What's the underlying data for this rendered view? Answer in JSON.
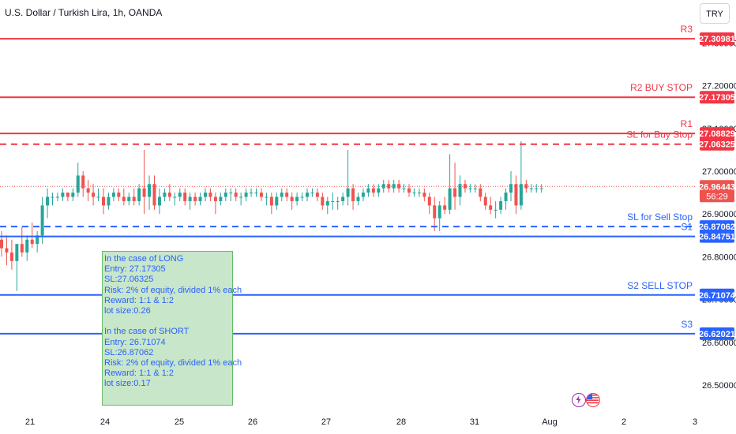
{
  "header": {
    "title": "U.S. Dollar / Turkish Lira, 1h, OANDA",
    "currency_button": "TRY"
  },
  "note": {
    "lines": [
      "In the case of LONG",
      "Entry: 27.17305",
      "SL:27.06325",
      "Risk: 2% of equity, divided 1% each",
      "Reward: 1:1 & 1:2",
      "lot size:0.26",
      "",
      "In the case of SHORT",
      "Entry: 26.71074",
      "SL:26.87062",
      "Risk: 2% of equity, divided 1% each",
      "Reward: 1:1 & 1:2",
      "lot size:0.17"
    ]
  },
  "colors": {
    "up": "#26a69a",
    "down": "#ef5350",
    "resistance": "#f23645",
    "support": "#2962ff",
    "note_bg": "#c8e6c9"
  },
  "icons": [
    "lightning-icon",
    "us-flag-icon"
  ],
  "chart_data": {
    "type": "candlestick",
    "title": "U.S. Dollar / Turkish Lira, 1h, OANDA",
    "ylim": [
      26.45,
      27.36
    ],
    "y_ticks": [
      26.5,
      26.6,
      26.7,
      26.8,
      26.9,
      27.0,
      27.1,
      27.2,
      27.3
    ],
    "y_tick_labels": [
      "26.50000",
      "26.60000",
      "26.70000",
      "26.80000",
      "26.90000",
      "27.00000",
      "27.10000",
      "27.20000",
      "27.30000"
    ],
    "x_ticks": [
      "21",
      "24",
      "25",
      "26",
      "27",
      "28",
      "31",
      "Aug",
      "2",
      "3"
    ],
    "x_tick_dates": [
      "2023-07-21",
      "2023-07-24",
      "2023-07-25",
      "2023-07-26",
      "2023-07-27",
      "2023-07-28",
      "2023-07-31",
      "2023-08-01",
      "2023-08-02",
      "2023-08-03"
    ],
    "last_price": {
      "value": 26.96443,
      "label": "26.96443",
      "countdown": "56:29"
    },
    "levels": [
      {
        "label": "R3",
        "value": 27.30981,
        "price_label": "27.30981",
        "style": "solid",
        "color": "#f23645"
      },
      {
        "label": "R2 BUY STOP",
        "value": 27.17305,
        "price_label": "27.17305",
        "style": "solid",
        "color": "#f23645"
      },
      {
        "label": "R1",
        "value": 27.08829,
        "price_label": "27.08829",
        "style": "solid",
        "color": "#f23645"
      },
      {
        "label": "SL for Buy Stop",
        "value": 27.06325,
        "price_label": "27.06325",
        "style": "dashed",
        "color": "#f23645"
      },
      {
        "label": "SL for Sell Stop",
        "value": 26.87062,
        "price_label": "26.87062",
        "style": "dashed",
        "color": "#2962ff"
      },
      {
        "label": "S1",
        "value": 26.84751,
        "price_label": "26.84751",
        "style": "solid",
        "color": "#2962ff"
      },
      {
        "label": "S2 SELL STOP",
        "value": 26.71074,
        "price_label": "26.71074",
        "style": "solid",
        "color": "#2962ff"
      },
      {
        "label": "S3",
        "value": 26.62021,
        "price_label": "26.62021",
        "style": "solid",
        "color": "#2962ff"
      }
    ],
    "candles": [
      [
        0,
        26.84,
        26.86,
        26.8,
        26.82
      ],
      [
        1,
        26.82,
        26.85,
        26.78,
        26.81
      ],
      [
        2,
        26.81,
        26.84,
        26.77,
        26.79
      ],
      [
        3,
        26.79,
        26.83,
        26.72,
        26.83
      ],
      [
        4,
        26.83,
        26.87,
        26.8,
        26.81
      ],
      [
        5,
        26.81,
        26.85,
        26.79,
        26.84
      ],
      [
        6,
        26.84,
        26.88,
        26.82,
        26.83
      ],
      [
        7,
        26.83,
        26.86,
        26.81,
        26.85
      ],
      [
        8,
        26.85,
        26.94,
        26.83,
        26.92
      ],
      [
        9,
        26.92,
        26.96,
        26.89,
        26.94
      ],
      [
        10,
        26.94,
        26.95,
        26.92,
        26.94
      ],
      [
        11,
        26.94,
        26.95,
        26.93,
        26.94
      ],
      [
        12,
        26.94,
        26.96,
        26.93,
        26.95
      ],
      [
        13,
        26.95,
        26.95,
        26.93,
        26.94
      ],
      [
        14,
        26.94,
        26.96,
        26.93,
        26.95
      ],
      [
        15,
        26.95,
        27.02,
        26.94,
        26.99
      ],
      [
        16,
        26.99,
        27.0,
        26.94,
        26.96
      ],
      [
        17,
        26.96,
        26.98,
        26.93,
        26.95
      ],
      [
        18,
        26.95,
        26.97,
        26.92,
        26.94
      ],
      [
        19,
        26.94,
        26.96,
        26.93,
        26.94
      ],
      [
        20,
        26.94,
        26.96,
        26.9,
        26.92
      ],
      [
        21,
        26.92,
        26.95,
        26.91,
        26.94
      ],
      [
        22,
        26.94,
        26.96,
        26.93,
        26.95
      ],
      [
        23,
        26.95,
        26.96,
        26.93,
        26.94
      ],
      [
        24,
        26.94,
        26.96,
        26.92,
        26.93
      ],
      [
        25,
        26.93,
        26.95,
        26.92,
        26.94
      ],
      [
        26,
        26.94,
        26.96,
        26.92,
        26.93
      ],
      [
        27,
        26.93,
        26.97,
        26.92,
        26.96
      ],
      [
        28,
        26.96,
        27.05,
        26.9,
        26.94
      ],
      [
        29,
        26.94,
        26.99,
        26.91,
        26.97
      ],
      [
        30,
        26.97,
        26.99,
        26.91,
        26.92
      ],
      [
        31,
        26.92,
        26.96,
        26.9,
        26.94
      ],
      [
        32,
        26.94,
        26.96,
        26.93,
        26.95
      ],
      [
        33,
        26.95,
        26.97,
        26.93,
        26.94
      ],
      [
        34,
        26.94,
        26.95,
        26.92,
        26.94
      ],
      [
        35,
        26.94,
        26.96,
        26.93,
        26.95
      ],
      [
        36,
        26.95,
        26.96,
        26.92,
        26.93
      ],
      [
        37,
        26.93,
        26.95,
        26.91,
        26.94
      ],
      [
        38,
        26.94,
        26.95,
        26.92,
        26.93
      ],
      [
        39,
        26.93,
        26.95,
        26.92,
        26.94
      ],
      [
        40,
        26.94,
        26.96,
        26.93,
        26.95
      ],
      [
        41,
        26.95,
        26.96,
        26.93,
        26.94
      ],
      [
        42,
        26.94,
        26.95,
        26.9,
        26.93
      ],
      [
        43,
        26.93,
        26.95,
        26.92,
        26.94
      ],
      [
        44,
        26.94,
        26.96,
        26.93,
        26.95
      ],
      [
        45,
        26.95,
        26.96,
        26.93,
        26.95
      ],
      [
        46,
        26.95,
        26.96,
        26.93,
        26.94
      ],
      [
        47,
        26.94,
        26.95,
        26.92,
        26.94
      ],
      [
        48,
        26.94,
        26.96,
        26.93,
        26.95
      ],
      [
        49,
        26.95,
        26.96,
        26.94,
        26.95
      ],
      [
        50,
        26.95,
        26.96,
        26.94,
        26.95
      ],
      [
        51,
        26.95,
        26.96,
        26.93,
        26.94
      ],
      [
        52,
        26.94,
        26.95,
        26.92,
        26.94
      ],
      [
        53,
        26.94,
        26.95,
        26.9,
        26.92
      ],
      [
        54,
        26.92,
        26.95,
        26.91,
        26.94
      ],
      [
        55,
        26.94,
        26.96,
        26.93,
        26.95
      ],
      [
        56,
        26.95,
        26.96,
        26.93,
        26.94
      ],
      [
        57,
        26.94,
        26.95,
        26.91,
        26.93
      ],
      [
        58,
        26.93,
        26.95,
        26.92,
        26.94
      ],
      [
        59,
        26.94,
        26.95,
        26.93,
        26.94
      ],
      [
        60,
        26.94,
        26.96,
        26.93,
        26.95
      ],
      [
        61,
        26.95,
        26.96,
        26.94,
        26.95
      ],
      [
        62,
        26.95,
        26.96,
        26.93,
        26.94
      ],
      [
        63,
        26.94,
        26.95,
        26.91,
        26.92
      ],
      [
        64,
        26.92,
        26.94,
        26.9,
        26.93
      ],
      [
        65,
        26.93,
        26.95,
        26.91,
        26.93
      ],
      [
        66,
        26.93,
        26.94,
        26.91,
        26.93
      ],
      [
        67,
        26.93,
        26.95,
        26.92,
        26.94
      ],
      [
        68,
        26.94,
        27.05,
        26.92,
        26.96
      ],
      [
        69,
        26.96,
        26.97,
        26.91,
        26.93
      ],
      [
        70,
        26.93,
        26.95,
        26.92,
        26.94
      ],
      [
        71,
        26.94,
        26.96,
        26.93,
        26.95
      ],
      [
        72,
        26.95,
        26.97,
        26.94,
        26.96
      ],
      [
        73,
        26.96,
        26.97,
        26.94,
        26.95
      ],
      [
        74,
        26.95,
        26.97,
        26.94,
        26.96
      ],
      [
        75,
        26.96,
        26.98,
        26.95,
        26.97
      ],
      [
        76,
        26.97,
        26.98,
        26.95,
        26.96
      ],
      [
        77,
        26.96,
        26.98,
        26.95,
        26.97
      ],
      [
        78,
        26.97,
        26.98,
        26.95,
        26.96
      ],
      [
        79,
        26.96,
        26.97,
        26.95,
        26.96
      ],
      [
        80,
        26.96,
        26.97,
        26.94,
        26.95
      ],
      [
        81,
        26.95,
        26.96,
        26.94,
        26.95
      ],
      [
        82,
        26.95,
        26.96,
        26.94,
        26.95
      ],
      [
        83,
        26.95,
        26.96,
        26.93,
        26.94
      ],
      [
        84,
        26.94,
        26.95,
        26.9,
        26.92
      ],
      [
        85,
        26.92,
        26.94,
        26.86,
        26.89
      ],
      [
        86,
        26.89,
        26.93,
        26.86,
        26.92
      ],
      [
        87,
        26.92,
        26.94,
        26.9,
        26.91
      ],
      [
        88,
        26.91,
        27.04,
        26.9,
        26.96
      ],
      [
        89,
        26.96,
        27.02,
        26.91,
        26.94
      ],
      [
        90,
        26.94,
        26.99,
        26.92,
        26.97
      ],
      [
        91,
        26.97,
        26.98,
        26.95,
        26.96
      ],
      [
        92,
        26.96,
        26.97,
        26.95,
        26.96
      ],
      [
        93,
        26.96,
        26.97,
        26.95,
        26.96
      ],
      [
        94,
        26.96,
        26.97,
        26.93,
        26.94
      ],
      [
        95,
        26.94,
        26.95,
        26.91,
        26.92
      ],
      [
        96,
        26.92,
        26.94,
        26.9,
        26.91
      ],
      [
        97,
        26.91,
        26.93,
        26.89,
        26.91
      ],
      [
        98,
        26.91,
        26.94,
        26.9,
        26.93
      ],
      [
        99,
        26.93,
        26.96,
        26.91,
        26.95
      ],
      [
        100,
        26.95,
        27.0,
        26.93,
        26.97
      ],
      [
        101,
        26.97,
        26.99,
        26.9,
        26.92
      ],
      [
        102,
        26.92,
        27.07,
        26.91,
        26.97
      ],
      [
        103,
        26.97,
        26.98,
        26.95,
        26.96
      ],
      [
        104,
        26.96,
        26.97,
        26.95,
        26.96
      ],
      [
        105,
        26.96,
        26.97,
        26.95,
        26.96
      ],
      [
        106,
        26.96,
        26.97,
        26.95,
        26.96
      ]
    ]
  }
}
